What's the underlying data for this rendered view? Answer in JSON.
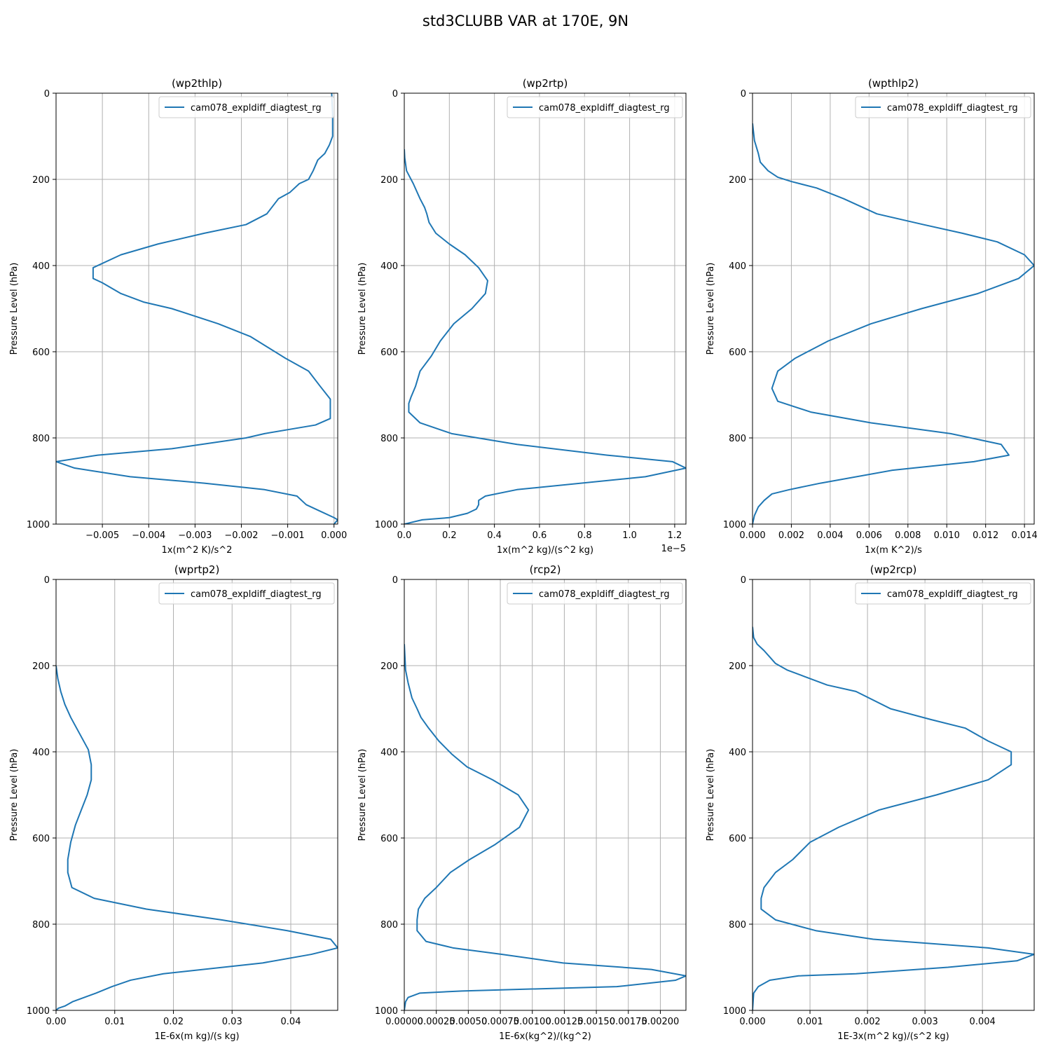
{
  "figure_title": "std3CLUBB VAR at 170E, 9N",
  "series_color": "#1f77b4",
  "grid_color": "#b0b0b0",
  "chart_data": [
    {
      "type": "line",
      "title": "(wp2thlp)",
      "xlabel": "1x(m^2 K)/s^2",
      "ylabel": "Pressure Level (hPa)",
      "xlim": [
        -0.006,
        8e-05
      ],
      "ylim": [
        1000,
        0
      ],
      "xticks": [
        -0.005,
        -0.004,
        -0.003,
        -0.002,
        -0.001,
        0.0
      ],
      "xtick_labels": [
        "−0.005",
        "−0.004",
        "−0.003",
        "−0.002",
        "−0.001",
        "0.000"
      ],
      "yticks": [
        0,
        200,
        400,
        600,
        800,
        1000
      ],
      "ytick_labels": [
        "0",
        "200",
        "400",
        "600",
        "800",
        "1000"
      ],
      "offset_label": "",
      "legend": "cam078_expldiff_diagtest_rg",
      "series": [
        {
          "name": "cam078_expldiff_diagtest_rg",
          "x": [
            -5e-05,
            -3e-05,
            -3e-05,
            -0.0001,
            -0.0002,
            -0.00035,
            -0.00045,
            -0.00055,
            -0.00075,
            -0.00095,
            -0.0012,
            -0.00145,
            -0.0019,
            -0.0028,
            -0.0038,
            -0.0046,
            -0.0052,
            -0.0052,
            -0.005,
            -0.0046,
            -0.0041,
            -0.0035,
            -0.0025,
            -0.0018,
            -0.00105,
            -0.00055,
            -0.0003,
            -8e-05,
            -8e-05,
            -0.0004,
            -0.0015,
            -0.0019,
            -0.0035,
            -0.0051,
            -0.006,
            -0.0056,
            -0.0044,
            -0.0028,
            -0.0015,
            -0.0008,
            -0.0006,
            -0.0003,
            0.0,
            8e-05,
            0.0
          ],
          "y": [
            0,
            50,
            100,
            120,
            140,
            155,
            180,
            200,
            210,
            230,
            245,
            280,
            305,
            325,
            350,
            375,
            405,
            430,
            440,
            465,
            485,
            500,
            535,
            565,
            615,
            645,
            680,
            710,
            755,
            770,
            790,
            800,
            825,
            840,
            855,
            870,
            890,
            905,
            920,
            935,
            955,
            970,
            985,
            990,
            1000
          ]
        }
      ]
    },
    {
      "type": "line",
      "title": "(wp2rtp)",
      "xlabel": "1x(m^2 kg)/(s^2 kg)",
      "ylabel": "Pressure Level (hPa)",
      "xlim": [
        0,
        1.25
      ],
      "ylim": [
        1000,
        0
      ],
      "xticks": [
        0.0,
        0.2,
        0.4,
        0.6,
        0.8,
        1.0,
        1.2
      ],
      "xtick_labels": [
        "0.0",
        "0.2",
        "0.4",
        "0.6",
        "0.8",
        "1.0",
        "1.2"
      ],
      "yticks": [
        0,
        200,
        400,
        600,
        800,
        1000
      ],
      "ytick_labels": [
        "0",
        "200",
        "400",
        "600",
        "800",
        "1000"
      ],
      "offset_label": "1e−5",
      "legend": "cam078_expldiff_diagtest_rg",
      "series": [
        {
          "name": "cam078_expldiff_diagtest_rg",
          "x": [
            0.0,
            0.002,
            0.01,
            0.04,
            0.07,
            0.09,
            0.1,
            0.11,
            0.14,
            0.2,
            0.27,
            0.33,
            0.37,
            0.36,
            0.3,
            0.22,
            0.16,
            0.12,
            0.07,
            0.05,
            0.03,
            0.02,
            0.02,
            0.07,
            0.21,
            0.5,
            0.9,
            1.19,
            1.25,
            1.07,
            0.5,
            0.36,
            0.33,
            0.33,
            0.32,
            0.28,
            0.2,
            0.08,
            0.0
          ],
          "y": [
            130,
            150,
            180,
            210,
            245,
            265,
            280,
            300,
            325,
            350,
            375,
            405,
            435,
            465,
            500,
            535,
            575,
            610,
            645,
            680,
            705,
            720,
            740,
            765,
            790,
            815,
            840,
            855,
            870,
            890,
            920,
            935,
            945,
            955,
            965,
            975,
            985,
            990,
            1000
          ]
        }
      ]
    },
    {
      "type": "line",
      "title": "(wpthlp2)",
      "xlabel": "1x(m K^2)/s",
      "ylabel": "Pressure Level (hPa)",
      "xlim": [
        0,
        0.0145
      ],
      "ylim": [
        1000,
        0
      ],
      "xticks": [
        0.0,
        0.002,
        0.004,
        0.006,
        0.008,
        0.01,
        0.012,
        0.014
      ],
      "xtick_labels": [
        "0.000",
        "0.002",
        "0.004",
        "0.006",
        "0.008",
        "0.010",
        "0.012",
        "0.014"
      ],
      "yticks": [
        0,
        200,
        400,
        600,
        800,
        1000
      ],
      "ytick_labels": [
        "0",
        "200",
        "400",
        "600",
        "800",
        "1000"
      ],
      "offset_label": "",
      "legend": "cam078_expldiff_diagtest_rg",
      "series": [
        {
          "name": "cam078_expldiff_diagtest_rg",
          "x": [
            0.0,
            0.0001,
            0.0003,
            0.0004,
            0.0006,
            0.0008,
            0.0013,
            0.002,
            0.0033,
            0.0047,
            0.0064,
            0.0088,
            0.0108,
            0.0126,
            0.014,
            0.0145,
            0.0137,
            0.0116,
            0.0087,
            0.0061,
            0.0039,
            0.0022,
            0.0013,
            0.001,
            0.0013,
            0.003,
            0.0061,
            0.0102,
            0.0128,
            0.0132,
            0.0114,
            0.0072,
            0.0035,
            0.0019,
            0.001,
            0.0006,
            0.0003,
            0.0001,
            0.0
          ],
          "y": [
            70,
            110,
            140,
            160,
            170,
            180,
            195,
            205,
            220,
            245,
            280,
            305,
            325,
            345,
            375,
            400,
            430,
            465,
            500,
            535,
            575,
            615,
            645,
            685,
            715,
            740,
            765,
            790,
            815,
            840,
            855,
            875,
            905,
            920,
            930,
            945,
            960,
            980,
            1000
          ]
        }
      ]
    },
    {
      "type": "line",
      "title": "(wprtp2)",
      "xlabel": "1E-6x(m kg)/(s kg)",
      "ylabel": "Pressure Level (hPa)",
      "xlim": [
        0,
        0.048
      ],
      "ylim": [
        1000,
        0
      ],
      "xticks": [
        0.0,
        0.01,
        0.02,
        0.03,
        0.04
      ],
      "xtick_labels": [
        "0.00",
        "0.01",
        "0.02",
        "0.03",
        "0.04"
      ],
      "yticks": [
        0,
        200,
        400,
        600,
        800,
        1000
      ],
      "ytick_labels": [
        "0",
        "200",
        "400",
        "600",
        "800",
        "1000"
      ],
      "offset_label": "",
      "legend": "cam078_expldiff_diagtest_rg",
      "series": [
        {
          "name": "cam078_expldiff_diagtest_rg",
          "x": [
            0.0,
            0.0003,
            0.0008,
            0.0015,
            0.0025,
            0.0035,
            0.0045,
            0.0055,
            0.006,
            0.006,
            0.0053,
            0.0043,
            0.0033,
            0.0025,
            0.002,
            0.002,
            0.0027,
            0.0065,
            0.0154,
            0.0282,
            0.0394,
            0.0468,
            0.048,
            0.0435,
            0.0352,
            0.0183,
            0.0127,
            0.0095,
            0.0068,
            0.0048,
            0.0028,
            0.0015,
            0.0004,
            0.0
          ],
          "y": [
            200,
            230,
            260,
            290,
            320,
            345,
            370,
            395,
            430,
            465,
            500,
            535,
            570,
            610,
            650,
            680,
            715,
            740,
            765,
            790,
            815,
            835,
            855,
            870,
            890,
            915,
            930,
            945,
            960,
            970,
            980,
            990,
            995,
            1000
          ]
        }
      ]
    },
    {
      "type": "line",
      "title": "(rcp2)",
      "xlabel": "1E-6x(kg^2)/(kg^2)",
      "ylabel": "Pressure Level (hPa)",
      "xlim": [
        0,
        0.0022
      ],
      "ylim": [
        1000,
        0
      ],
      "xticks": [
        0.0,
        0.00025,
        0.0005,
        0.00075,
        0.001,
        0.00125,
        0.0015,
        0.00175,
        0.002
      ],
      "xtick_labels": [
        "0.00000",
        "0.00025",
        "0.00050",
        "0.00075",
        "0.00100",
        "0.00125",
        "0.00150",
        "0.00175",
        "0.00200"
      ],
      "yticks": [
        0,
        200,
        400,
        600,
        800,
        1000
      ],
      "ytick_labels": [
        "0",
        "200",
        "400",
        "600",
        "800",
        "1000"
      ],
      "offset_label": "",
      "legend": "cam078_expldiff_diagtest_rg",
      "series": [
        {
          "name": "cam078_expldiff_diagtest_rg",
          "x": [
            0.0,
            1e-05,
            3e-05,
            6e-05,
            0.0001,
            0.00013,
            0.00019,
            0.00027,
            0.00037,
            0.00049,
            0.00069,
            0.00089,
            0.00097,
            0.0009,
            0.00071,
            0.00051,
            0.00036,
            0.00025,
            0.00016,
            0.00011,
            0.0001,
            0.0001,
            0.00017,
            0.00038,
            0.00076,
            0.00124,
            0.00193,
            0.0022,
            0.00212,
            0.00166,
            0.00045,
            0.00012,
            3e-05,
            1e-05,
            0.0
          ],
          "y": [
            150,
            210,
            240,
            275,
            300,
            320,
            345,
            375,
            405,
            435,
            465,
            500,
            535,
            575,
            615,
            650,
            680,
            715,
            740,
            765,
            790,
            815,
            840,
            855,
            870,
            890,
            905,
            920,
            930,
            945,
            955,
            960,
            970,
            980,
            1000
          ]
        }
      ]
    },
    {
      "type": "line",
      "title": "(wp2rcp)",
      "xlabel": "1E-3x(m^2 kg)/(s^2 kg)",
      "ylabel": "Pressure Level (hPa)",
      "xlim": [
        0,
        0.0049
      ],
      "ylim": [
        1000,
        0
      ],
      "xticks": [
        0.0,
        0.001,
        0.002,
        0.003,
        0.004
      ],
      "xtick_labels": [
        "0.000",
        "0.001",
        "0.002",
        "0.003",
        "0.004"
      ],
      "yticks": [
        0,
        200,
        400,
        600,
        800,
        1000
      ],
      "ytick_labels": [
        "0",
        "200",
        "400",
        "600",
        "800",
        "1000"
      ],
      "offset_label": "",
      "legend": "cam078_expldiff_diagtest_rg",
      "series": [
        {
          "name": "cam078_expldiff_diagtest_rg",
          "x": [
            0.0,
            2e-05,
            8e-05,
            0.0002,
            0.0003,
            0.0004,
            0.0006,
            0.0009,
            0.0013,
            0.0018,
            0.0024,
            0.0031,
            0.0037,
            0.0041,
            0.0045,
            0.0045,
            0.0041,
            0.0032,
            0.0022,
            0.0015,
            0.001,
            0.0007,
            0.0004,
            0.0002,
            0.00015,
            0.00015,
            0.0004,
            0.0011,
            0.0021,
            0.0041,
            0.0049,
            0.0046,
            0.0034,
            0.0018,
            0.0008,
            0.0003,
            0.0001,
            2e-05,
            0.0
          ],
          "y": [
            110,
            135,
            150,
            165,
            180,
            195,
            210,
            225,
            245,
            260,
            300,
            325,
            345,
            375,
            400,
            430,
            465,
            500,
            535,
            575,
            610,
            650,
            680,
            715,
            740,
            765,
            790,
            815,
            835,
            855,
            870,
            885,
            900,
            915,
            920,
            930,
            945,
            960,
            1000
          ]
        }
      ]
    }
  ]
}
